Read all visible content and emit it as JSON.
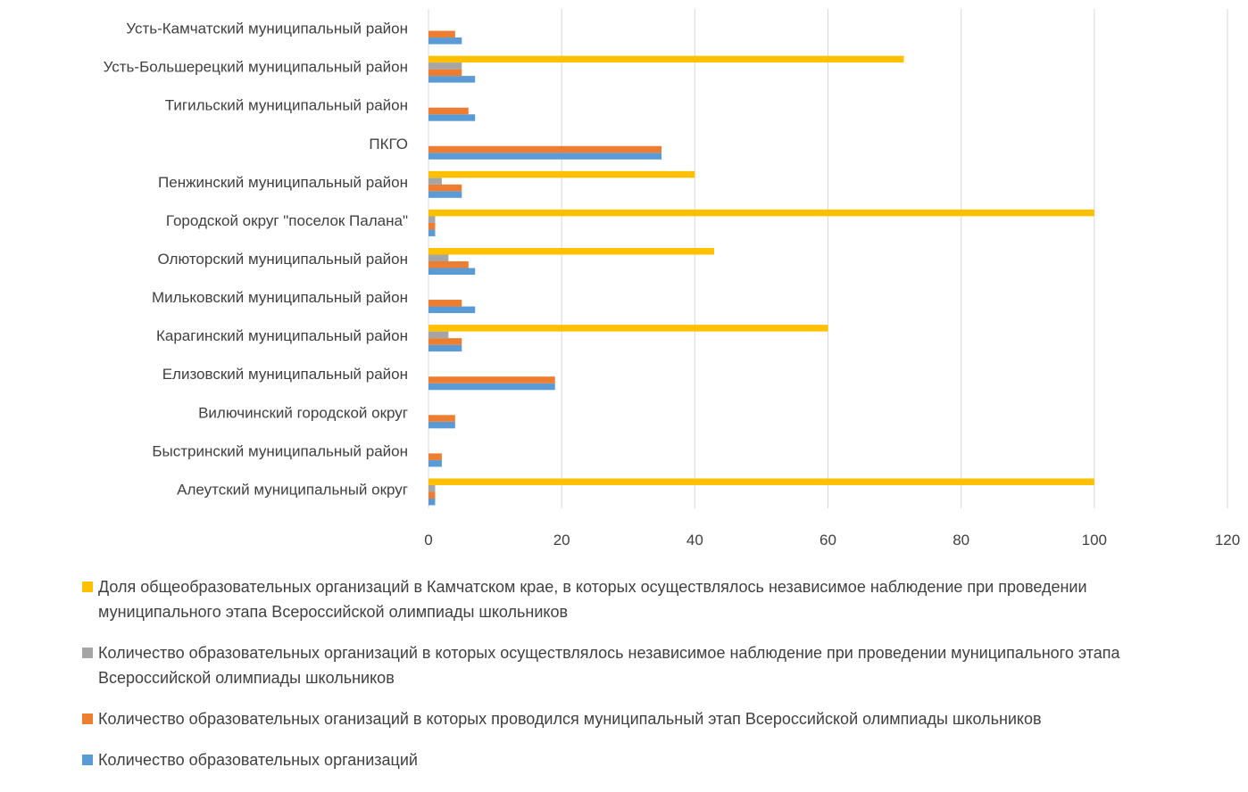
{
  "chart_data": {
    "type": "bar",
    "orientation": "horizontal",
    "categories": [
      "Алеутский муниципальный округ",
      "Быстринский муниципальный район",
      "Вилючинский городской округ",
      "Елизовский муниципальный район",
      "Карагинский муниципальный район",
      "Мильковский муниципальный район",
      "Олюторский муниципальный район",
      "Городской округ \"поселок Палана\"",
      "Пенжинский муниципальный район",
      "ПКГО",
      "Тигильский муниципальный район",
      "Усть-Большерецкий муниципальный район",
      "Усть-Камчатский муниципальный район"
    ],
    "series": [
      {
        "name": "Количество образовательных организаций",
        "color": "#5B9BD5",
        "values": [
          1,
          2,
          4,
          19,
          5,
          7,
          7,
          1,
          5,
          35,
          7,
          7,
          5
        ]
      },
      {
        "name": "Количество образовательных оганизаций в которых проводился муниципальный этап Всероссийской олимпиады школьников",
        "color": "#ED7D31",
        "values": [
          1,
          2,
          4,
          19,
          5,
          5,
          6,
          1,
          5,
          35,
          6,
          5,
          4
        ]
      },
      {
        "name": "Количество образовательных организаций в которых осуществлялось независимое наблюдение при проведении муниципального этапа Всероссийской олимпиады школьников",
        "color": "#A5A5A5",
        "values": [
          1,
          0,
          0,
          0,
          3,
          0,
          3,
          1,
          2,
          0,
          0,
          5,
          0
        ]
      },
      {
        "name": "Доля общеобразовательных организаций в Камчатском крае, в которых осуществлялось независимое наблюдение при проведении муниципального этапа Всероссийской олимпиады школьников",
        "color": "#FFC000",
        "values": [
          100,
          0,
          0,
          0,
          60,
          0,
          42.9,
          100,
          40,
          0,
          0,
          71.4,
          0
        ]
      }
    ],
    "xlim": [
      0,
      120
    ],
    "xticks": [
      0,
      20,
      40,
      60,
      80,
      100,
      120
    ],
    "grid": "vertical",
    "legend_position": "bottom"
  }
}
